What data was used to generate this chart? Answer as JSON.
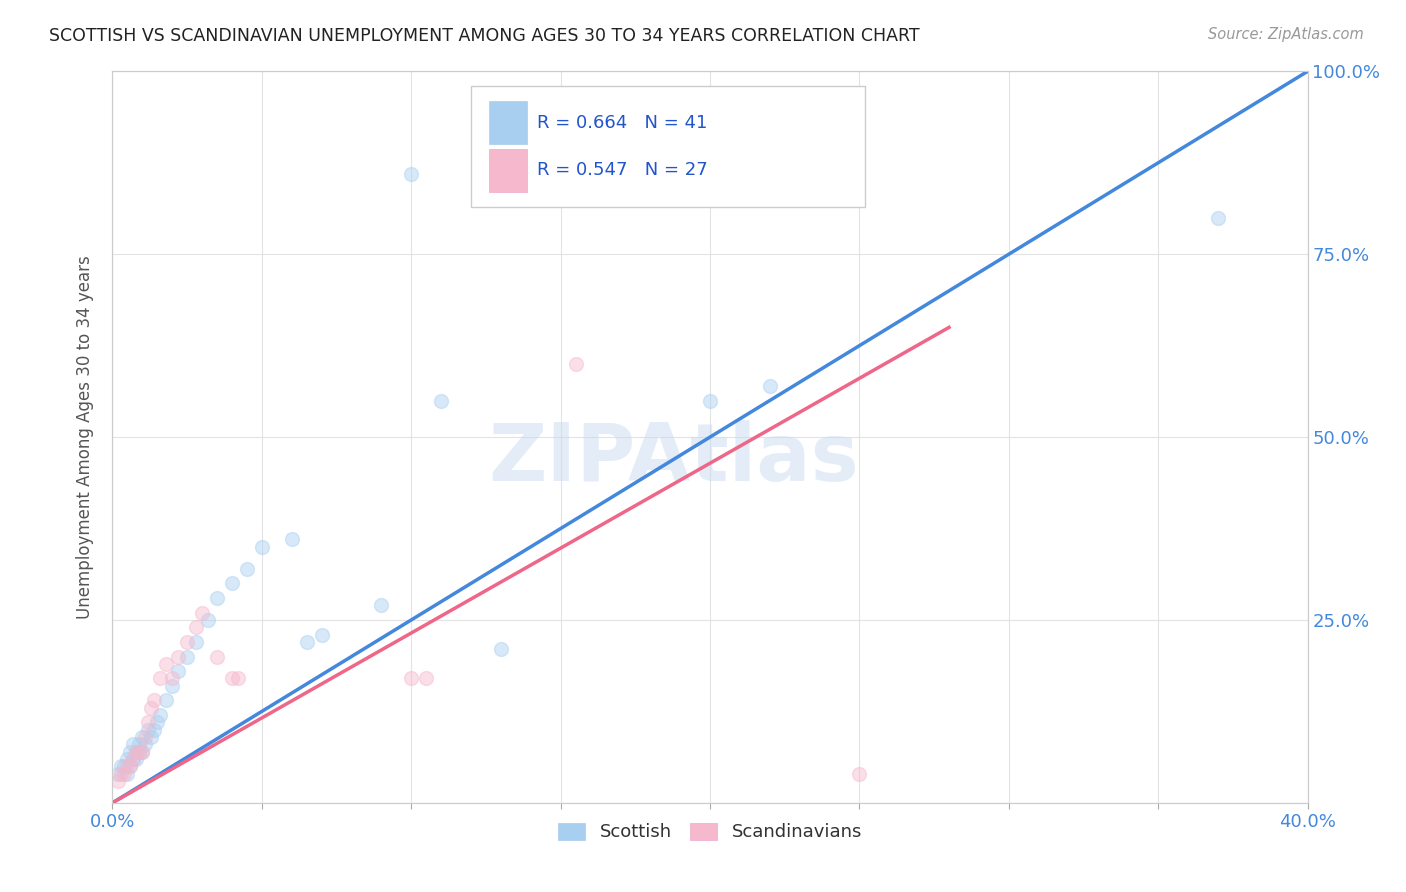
{
  "title": "SCOTTISH VS SCANDINAVIAN UNEMPLOYMENT AMONG AGES 30 TO 34 YEARS CORRELATION CHART",
  "source": "Source: ZipAtlas.com",
  "ylabel": "Unemployment Among Ages 30 to 34 years",
  "xlim": [
    0.0,
    0.4
  ],
  "ylim": [
    0.0,
    1.0
  ],
  "xticks": [
    0.0,
    0.05,
    0.1,
    0.15,
    0.2,
    0.25,
    0.3,
    0.35,
    0.4
  ],
  "xtick_labels": [
    "0.0%",
    "",
    "",
    "",
    "",
    "",
    "",
    "",
    "40.0%"
  ],
  "yticks": [
    0.0,
    0.25,
    0.5,
    0.75,
    1.0
  ],
  "ytick_labels": [
    "",
    "25.0%",
    "50.0%",
    "75.0%",
    "100.0%"
  ],
  "scottish_R": 0.664,
  "scottish_N": 41,
  "scandinavian_R": 0.547,
  "scandinavian_N": 27,
  "scottish_color": "#a8cff0",
  "scandinavian_color": "#f5b8cc",
  "scottish_line_color": "#4488dd",
  "scandinavian_line_color": "#ee6688",
  "reference_line_color": "#bbbbbb",
  "grid_color": "#dddddd",
  "background_color": "#ffffff",
  "title_color": "#222222",
  "axis_label_color": "#555555",
  "legend_value_color": "#2255cc",
  "scottish_line_x": [
    0.0,
    0.4
  ],
  "scottish_line_y": [
    0.0,
    1.0
  ],
  "scandinavian_line_x": [
    0.0,
    0.28
  ],
  "scandinavian_line_y": [
    0.0,
    0.65
  ],
  "scottish_x": [
    0.002,
    0.003,
    0.004,
    0.005,
    0.005,
    0.006,
    0.006,
    0.007,
    0.007,
    0.008,
    0.008,
    0.009,
    0.009,
    0.01,
    0.01,
    0.011,
    0.012,
    0.013,
    0.014,
    0.015,
    0.016,
    0.018,
    0.02,
    0.022,
    0.025,
    0.028,
    0.032,
    0.035,
    0.04,
    0.045,
    0.05,
    0.06,
    0.065,
    0.07,
    0.09,
    0.1,
    0.11,
    0.13,
    0.2,
    0.22,
    0.37
  ],
  "scottish_y": [
    0.04,
    0.05,
    0.05,
    0.04,
    0.06,
    0.05,
    0.07,
    0.06,
    0.08,
    0.06,
    0.07,
    0.07,
    0.08,
    0.07,
    0.09,
    0.08,
    0.1,
    0.09,
    0.1,
    0.11,
    0.12,
    0.14,
    0.16,
    0.18,
    0.2,
    0.22,
    0.25,
    0.28,
    0.3,
    0.32,
    0.35,
    0.36,
    0.22,
    0.23,
    0.27,
    0.86,
    0.55,
    0.21,
    0.55,
    0.57,
    0.8
  ],
  "scandinavian_x": [
    0.002,
    0.003,
    0.004,
    0.005,
    0.006,
    0.007,
    0.008,
    0.009,
    0.01,
    0.011,
    0.012,
    0.013,
    0.014,
    0.016,
    0.018,
    0.02,
    0.022,
    0.025,
    0.028,
    0.03,
    0.035,
    0.04,
    0.042,
    0.1,
    0.105,
    0.155,
    0.25
  ],
  "scandinavian_y": [
    0.03,
    0.04,
    0.04,
    0.05,
    0.05,
    0.06,
    0.07,
    0.07,
    0.07,
    0.09,
    0.11,
    0.13,
    0.14,
    0.17,
    0.19,
    0.17,
    0.2,
    0.22,
    0.24,
    0.26,
    0.2,
    0.17,
    0.17,
    0.17,
    0.17,
    0.6,
    0.04
  ],
  "watermark_text": "ZIPAtlas",
  "marker_size": 100,
  "marker_alpha": 0.45,
  "line_width": 2.5
}
